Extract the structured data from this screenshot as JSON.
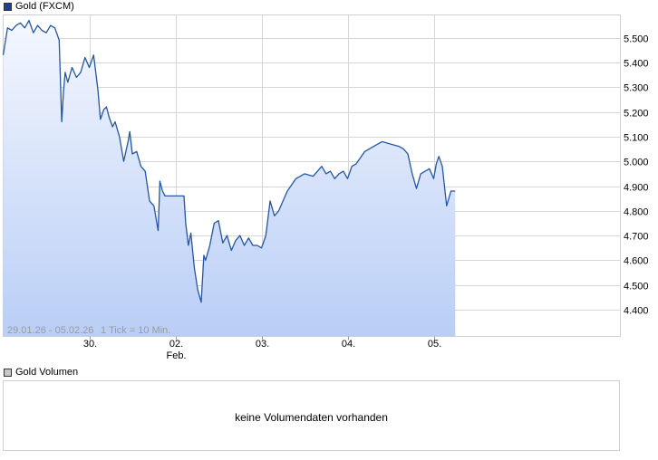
{
  "legend": {
    "price_label": "Gold (FXCM)",
    "volume_label": "Gold Volumen"
  },
  "info": {
    "range": "29.01.26 - 05.02.26",
    "tick": "1 Tick = 10 Min."
  },
  "volume_panel": {
    "message": "keine Volumendaten vorhanden"
  },
  "colors": {
    "line": "#2456a4",
    "fill_top": "#f4f7fe",
    "fill_bottom": "#b9cef6",
    "grid": "#d6d6d6"
  },
  "chart_data": {
    "type": "area",
    "title": "Gold (FXCM)",
    "xlabel": "",
    "ylabel": "",
    "xlim": [
      0,
      6.0
    ],
    "ylim": [
      4.3,
      5.6
    ],
    "y_ticks": [
      4.4,
      4.5,
      4.6,
      4.7,
      4.8,
      4.9,
      5.0,
      5.1,
      5.2,
      5.3,
      5.4,
      5.5
    ],
    "y_tick_labels": [
      "4.400",
      "4.500",
      "4.600",
      "4.700",
      "4.800",
      "4.900",
      "5.000",
      "5.100",
      "5.200",
      "5.300",
      "5.400",
      "5.500"
    ],
    "x_ticks": [
      {
        "x": 1.0,
        "label": "30.",
        "sublabel": ""
      },
      {
        "x": 2.0,
        "label": "02.",
        "sublabel": "Feb."
      },
      {
        "x": 3.0,
        "label": "03.",
        "sublabel": ""
      },
      {
        "x": 4.0,
        "label": "04.",
        "sublabel": ""
      },
      {
        "x": 5.0,
        "label": "05.",
        "sublabel": ""
      }
    ],
    "grid": true,
    "series": [
      {
        "name": "Gold (FXCM)",
        "x": [
          0.0,
          0.05,
          0.1,
          0.15,
          0.2,
          0.25,
          0.3,
          0.35,
          0.4,
          0.45,
          0.5,
          0.55,
          0.6,
          0.65,
          0.68,
          0.7,
          0.72,
          0.75,
          0.8,
          0.85,
          0.9,
          0.95,
          1.0,
          1.05,
          1.1,
          1.13,
          1.17,
          1.2,
          1.23,
          1.27,
          1.3,
          1.35,
          1.4,
          1.45,
          1.47,
          1.5,
          1.55,
          1.6,
          1.65,
          1.7,
          1.75,
          1.8,
          1.82,
          1.85,
          1.88,
          1.92,
          1.96,
          2.0,
          2.05,
          2.1,
          2.12,
          2.15,
          2.18,
          2.22,
          2.26,
          2.3,
          2.33,
          2.35,
          2.4,
          2.45,
          2.5,
          2.55,
          2.6,
          2.65,
          2.7,
          2.75,
          2.8,
          2.85,
          2.9,
          2.95,
          3.0,
          3.05,
          3.1,
          3.15,
          3.2,
          3.3,
          3.4,
          3.5,
          3.6,
          3.7,
          3.75,
          3.8,
          3.85,
          3.9,
          3.95,
          4.0,
          4.05,
          4.1,
          4.2,
          4.3,
          4.4,
          4.5,
          4.6,
          4.65,
          4.7,
          4.75,
          4.8,
          4.85,
          4.9,
          4.95,
          5.0,
          5.03,
          5.06,
          5.1,
          5.15,
          5.2,
          5.25
        ],
        "values": [
          5.43,
          5.54,
          5.53,
          5.55,
          5.56,
          5.54,
          5.57,
          5.52,
          5.55,
          5.53,
          5.52,
          5.55,
          5.54,
          5.49,
          5.16,
          5.28,
          5.36,
          5.32,
          5.38,
          5.34,
          5.36,
          5.42,
          5.38,
          5.43,
          5.29,
          5.17,
          5.21,
          5.22,
          5.18,
          5.14,
          5.16,
          5.1,
          5.0,
          5.08,
          5.12,
          5.03,
          5.04,
          4.98,
          4.96,
          4.84,
          4.82,
          4.72,
          4.92,
          4.88,
          4.86,
          4.86,
          4.86,
          4.86,
          4.86,
          4.86,
          4.75,
          4.66,
          4.71,
          4.57,
          4.48,
          4.43,
          4.62,
          4.6,
          4.66,
          4.75,
          4.76,
          4.67,
          4.7,
          4.64,
          4.68,
          4.7,
          4.66,
          4.69,
          4.66,
          4.66,
          4.65,
          4.7,
          4.84,
          4.78,
          4.8,
          4.88,
          4.93,
          4.95,
          4.94,
          4.98,
          4.95,
          4.96,
          4.93,
          4.95,
          4.96,
          4.93,
          4.98,
          4.99,
          5.04,
          5.06,
          5.08,
          5.07,
          5.06,
          5.05,
          5.03,
          4.95,
          4.89,
          4.95,
          4.96,
          4.97,
          4.93,
          4.99,
          5.02,
          4.98,
          4.82,
          4.88,
          4.88
        ]
      }
    ]
  }
}
